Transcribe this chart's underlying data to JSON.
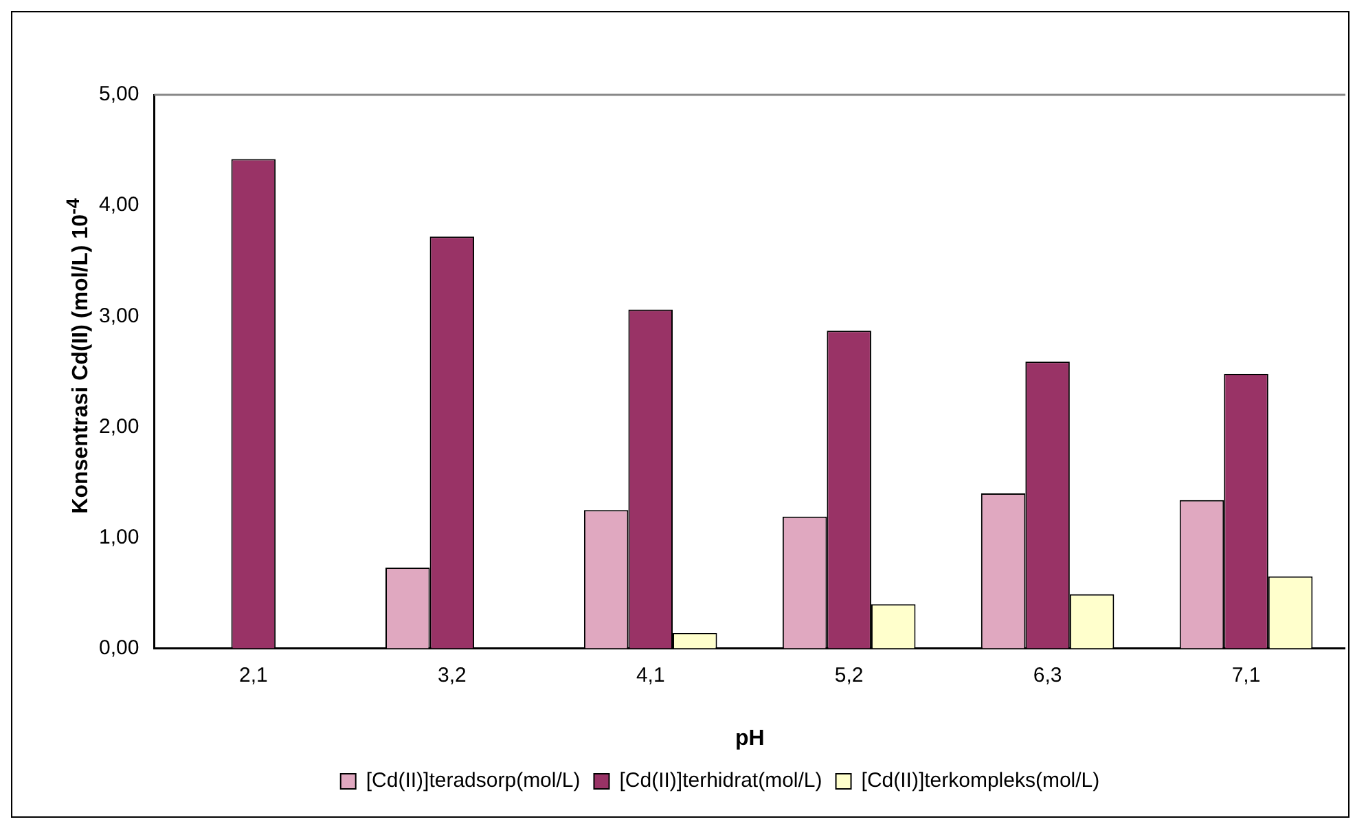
{
  "chart_data": {
    "type": "bar",
    "xlabel": "pH",
    "ylabel": "Konsentrasi Cd(II) (mol/L) 10$^{-4}$",
    "categories": [
      "2,1",
      "3,2",
      "4,1",
      "5,2",
      "6,3",
      "7,1"
    ],
    "series": [
      {
        "name": "[Cd(II)]teradsorp(mol/L)",
        "color": "#e0a8c0",
        "values": [
          null,
          0.73,
          1.25,
          1.19,
          1.4,
          1.34
        ]
      },
      {
        "name": "[Cd(II)]terhidrat(mol/L)",
        "color": "#993366",
        "values": [
          4.42,
          3.72,
          3.06,
          2.87,
          2.59,
          2.48
        ]
      },
      {
        "name": "[Cd(II)]terkompleks(mol/L)",
        "color": "#ffffcc",
        "values": [
          null,
          null,
          0.14,
          0.4,
          0.49,
          0.65
        ]
      }
    ],
    "ylim": [
      0,
      5
    ],
    "yticks": [
      {
        "value": 0,
        "label": "0,00"
      },
      {
        "value": 1,
        "label": "1,00"
      },
      {
        "value": 2,
        "label": "2,00"
      },
      {
        "value": 3,
        "label": "3,00"
      },
      {
        "value": 4,
        "label": "4,00"
      },
      {
        "value": 5,
        "label": "5,00"
      }
    ],
    "grid": false,
    "legend": "bottom"
  }
}
